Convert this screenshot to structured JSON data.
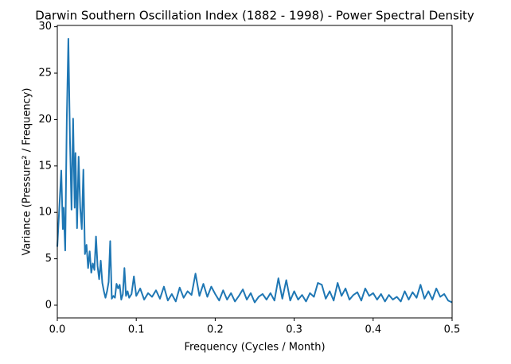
{
  "chart_data": {
    "type": "line",
    "title": "Darwin Southern Oscillation Index (1882 - 1998) - Power Spectral Density",
    "xlabel": "Frequency (Cycles / Month)",
    "ylabel": "Variance (Pressure² / Frequency)",
    "color": "#1f77b4",
    "x": [
      0,
      0.005,
      0.007,
      0.008,
      0.01,
      0.012,
      0.014,
      0.016,
      0.018,
      0.02,
      0.022,
      0.023,
      0.025,
      0.027,
      0.029,
      0.031,
      0.033,
      0.035,
      0.037,
      0.039,
      0.041,
      0.043,
      0.045,
      0.047,
      0.049,
      0.051,
      0.053,
      0.055,
      0.057,
      0.059,
      0.061,
      0.063,
      0.065,
      0.067,
      0.069,
      0.071,
      0.073,
      0.075,
      0.077,
      0.079,
      0.081,
      0.083,
      0.085,
      0.087,
      0.089,
      0.091,
      0.094,
      0.097,
      0.1,
      0.105,
      0.11,
      0.115,
      0.12,
      0.125,
      0.13,
      0.135,
      0.14,
      0.145,
      0.15,
      0.155,
      0.16,
      0.165,
      0.17,
      0.175,
      0.18,
      0.185,
      0.19,
      0.195,
      0.2,
      0.205,
      0.21,
      0.215,
      0.22,
      0.225,
      0.23,
      0.235,
      0.24,
      0.245,
      0.25,
      0.255,
      0.26,
      0.265,
      0.27,
      0.275,
      0.28,
      0.285,
      0.29,
      0.295,
      0.3,
      0.305,
      0.31,
      0.315,
      0.32,
      0.325,
      0.33,
      0.335,
      0.34,
      0.345,
      0.35,
      0.355,
      0.36,
      0.365,
      0.37,
      0.375,
      0.38,
      0.385,
      0.39,
      0.395,
      0.4,
      0.405,
      0.41,
      0.415,
      0.42,
      0.425,
      0.43,
      0.435,
      0.44,
      0.445,
      0.45,
      0.455,
      0.46,
      0.465,
      0.47,
      0.475,
      0.48,
      0.485,
      0.49,
      0.495,
      0.5
    ],
    "values": [
      6.3,
      14.5,
      8.2,
      10.5,
      5.9,
      20,
      28.7,
      18,
      10.3,
      20.1,
      10.5,
      16.4,
      8.3,
      16,
      10.5,
      8.2,
      14.6,
      5.5,
      6.5,
      4,
      5.8,
      3.5,
      4.5,
      3.8,
      7.4,
      4.2,
      2.8,
      4.8,
      2.4,
      1.5,
      0.8,
      1.5,
      2.5,
      6.9,
      0.7,
      1.0,
      0.8,
      2.3,
      1.8,
      2.2,
      0.6,
      1.2,
      4.0,
      1.0,
      1.5,
      0.8,
      1.2,
      3.1,
      1.0,
      1.8,
      0.6,
      1.3,
      0.9,
      1.6,
      0.7,
      2.0,
      0.5,
      1.2,
      0.4,
      1.9,
      0.8,
      1.5,
      1.1,
      3.4,
      1.0,
      2.3,
      0.9,
      2.0,
      1.2,
      0.5,
      1.6,
      0.6,
      1.3,
      0.4,
      1.0,
      1.7,
      0.6,
      1.3,
      0.3,
      0.9,
      1.2,
      0.6,
      1.3,
      0.5,
      2.9,
      0.7,
      2.7,
      0.5,
      1.5,
      0.6,
      1.1,
      0.4,
      1.3,
      0.9,
      2.4,
      2.2,
      0.7,
      1.5,
      0.5,
      2.4,
      1.0,
      1.8,
      0.6,
      1.1,
      1.4,
      0.5,
      1.8,
      1.0,
      1.3,
      0.6,
      1.2,
      0.4,
      1.1,
      0.6,
      0.9,
      0.4,
      1.5,
      0.6,
      1.4,
      0.8,
      2.2,
      0.7,
      1.5,
      0.6,
      1.8,
      0.9,
      1.2,
      0.5,
      0.3
    ],
    "xlim": [
      0,
      0.5
    ],
    "xticks": [
      {
        "value": 0,
        "label": "0.0"
      },
      0.1,
      0.2,
      0.3,
      0.4,
      0.5
    ],
    "ylim": [
      -1.37,
      30.14
    ],
    "yticks": [
      0,
      5,
      10,
      15,
      20,
      25,
      30
    ]
  }
}
